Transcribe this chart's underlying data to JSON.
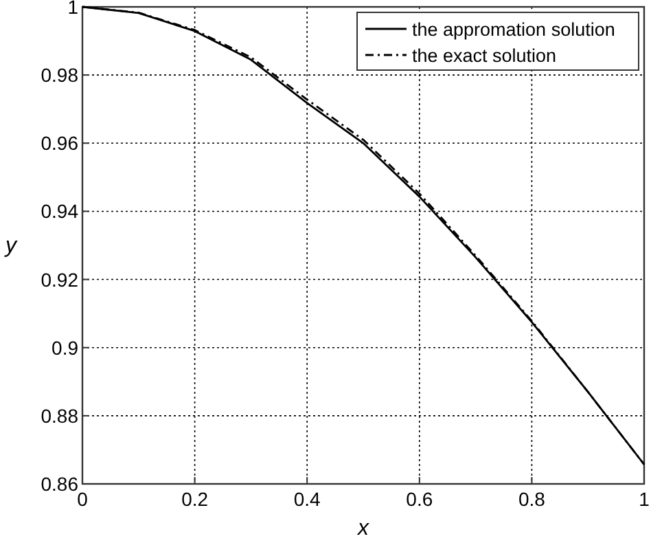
{
  "chart_data": {
    "type": "line",
    "xlabel": "x",
    "ylabel": "y",
    "xlim": [
      0,
      1
    ],
    "ylim": [
      0.86,
      1
    ],
    "xticks": [
      0,
      0.2,
      0.4,
      0.6,
      0.8,
      1
    ],
    "yticks": [
      0.86,
      0.88,
      0.9,
      0.92,
      0.94,
      0.96,
      0.98,
      1
    ],
    "grid": true,
    "legend": "top right",
    "x": [
      0,
      0.1,
      0.2,
      0.3,
      0.4,
      0.5,
      0.6,
      0.7,
      0.8,
      0.9,
      1
    ],
    "series": [
      {
        "name": "the appromation solution",
        "color": "#000000",
        "line_style": "solid",
        "values": [
          1,
          0.9982,
          0.9929,
          0.9845,
          0.9718,
          0.96,
          0.9443,
          0.9265,
          0.9075,
          0.887,
          0.8657
        ]
      },
      {
        "name": "the exact solution",
        "color": "#000000",
        "line_style": "dashdot",
        "values": [
          1,
          0.9983,
          0.9932,
          0.9852,
          0.9728,
          0.961,
          0.9452,
          0.927,
          0.9078,
          0.887,
          0.8657
        ]
      }
    ]
  }
}
